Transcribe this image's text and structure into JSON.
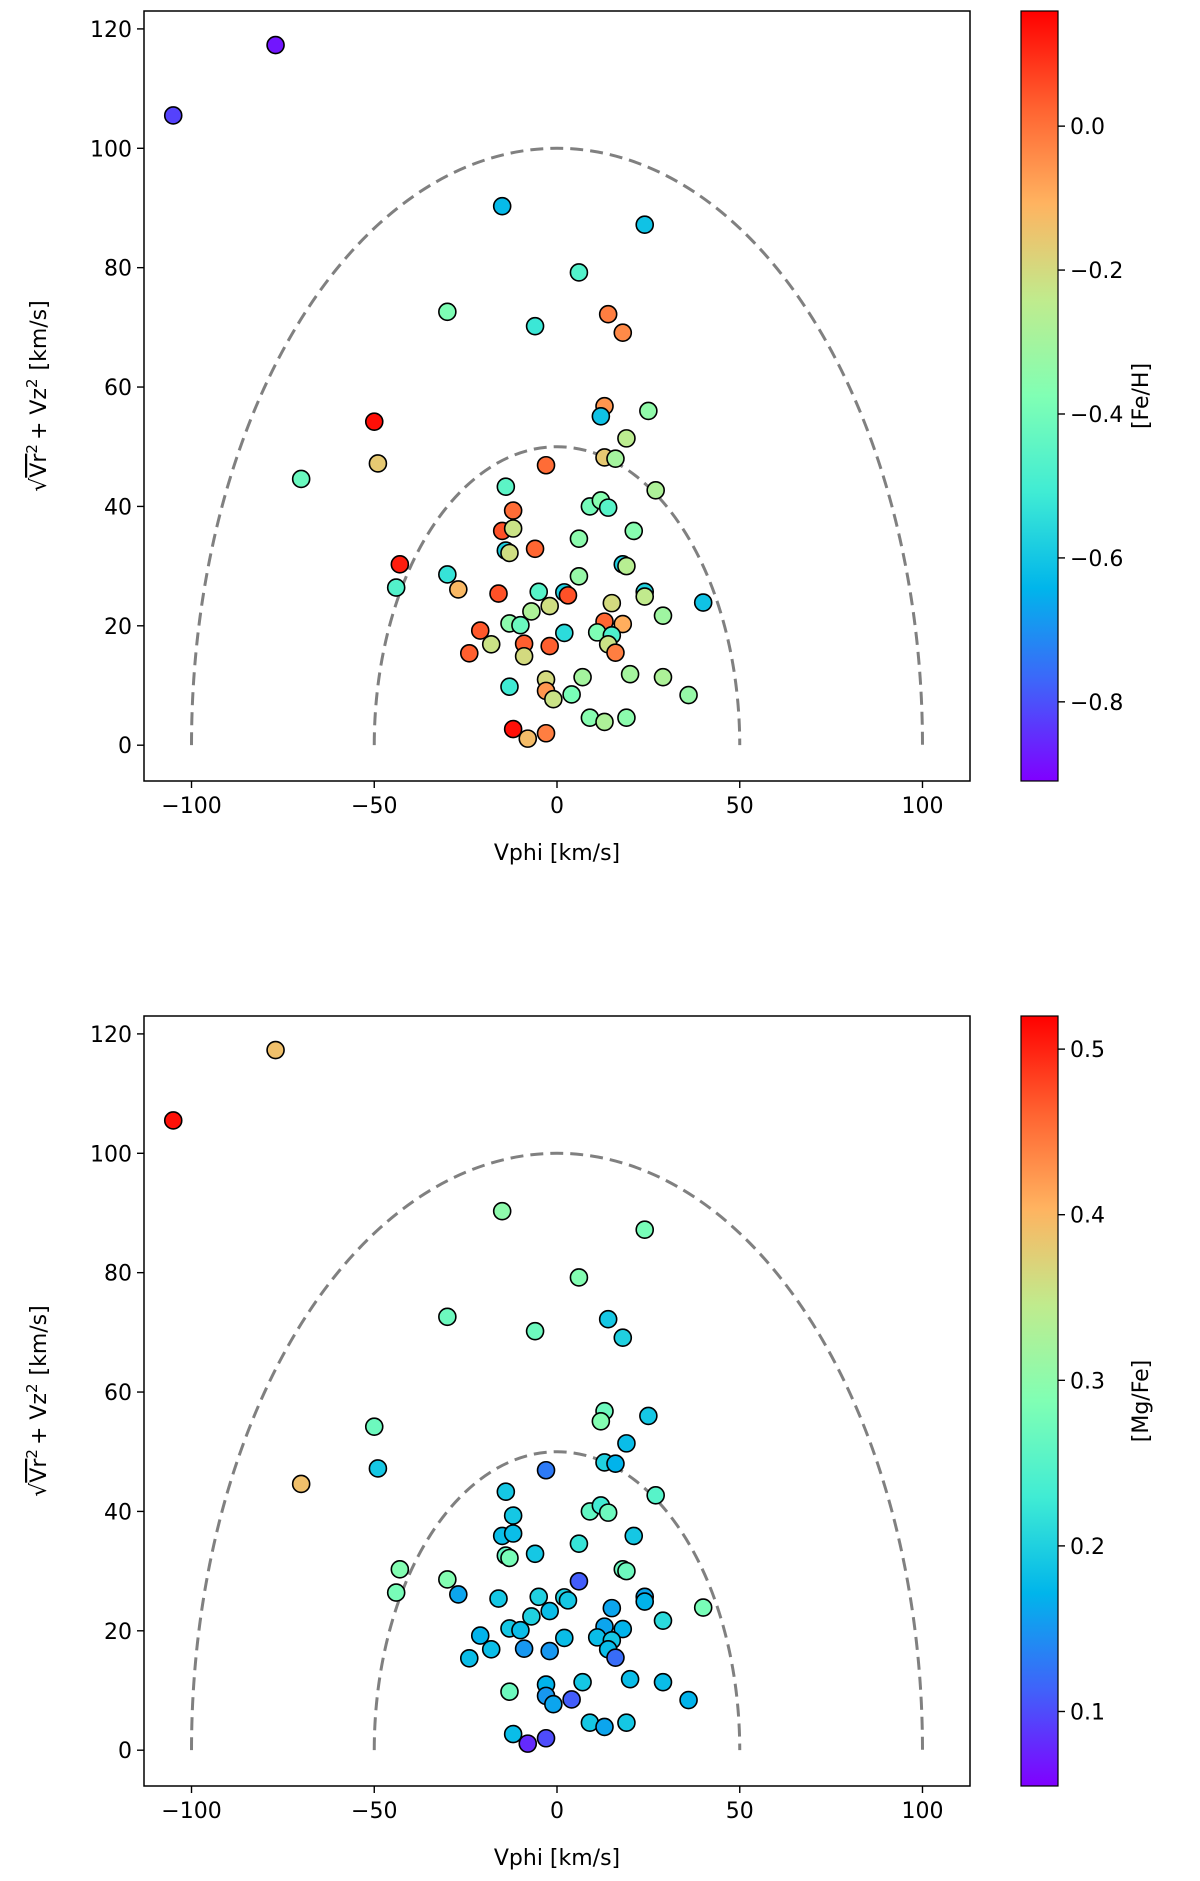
{
  "chart_data": [
    {
      "type": "scatter",
      "xlabel": "Vphi [km/s]",
      "ylabel_parts": [
        "Vr",
        "2",
        "+ Vz",
        "2",
        "[km/s]"
      ],
      "xlim": [
        -113,
        113
      ],
      "ylim": [
        -6,
        123
      ],
      "xticks": [
        -100,
        -50,
        0,
        50,
        100
      ],
      "xtick_labels": [
        "−100",
        "−50",
        "0",
        "50",
        "100"
      ],
      "yticks": [
        0,
        20,
        40,
        60,
        80,
        100,
        120
      ],
      "ytick_labels": [
        "0",
        "20",
        "40",
        "60",
        "80",
        "100",
        "120"
      ],
      "colorbar": {
        "label": "[Fe/H]",
        "range": [
          -0.91,
          0.16
        ],
        "ticks": [
          0.0,
          -0.2,
          -0.4,
          -0.6,
          -0.8
        ],
        "tick_labels": [
          "0.0",
          "−0.2",
          "−0.4",
          "−0.6",
          "−0.8"
        ]
      },
      "dashed_semicircles": [
        {
          "radius": 50,
          "color": "#808080"
        },
        {
          "radius": 100,
          "color": "#808080"
        }
      ],
      "points": [
        {
          "x": -105,
          "y": 105.5,
          "c": -0.82
        },
        {
          "x": -77,
          "y": 117.3,
          "c": -0.88
        },
        {
          "x": -15,
          "y": 90.3,
          "c": -0.63
        },
        {
          "x": 24,
          "y": 87.2,
          "c": -0.61
        },
        {
          "x": 6,
          "y": 79.2,
          "c": -0.47
        },
        {
          "x": -30,
          "y": 72.6,
          "c": -0.38
        },
        {
          "x": -6,
          "y": 70.2,
          "c": -0.52
        },
        {
          "x": 14,
          "y": 72.2,
          "c": -0.02
        },
        {
          "x": 18,
          "y": 69.1,
          "c": -0.04
        },
        {
          "x": -50,
          "y": 54.2,
          "c": 0.14
        },
        {
          "x": -49,
          "y": 47.2,
          "c": -0.16
        },
        {
          "x": -70,
          "y": 44.6,
          "c": -0.42
        },
        {
          "x": 13,
          "y": 56.8,
          "c": -0.06
        },
        {
          "x": 12,
          "y": 55.1,
          "c": -0.61
        },
        {
          "x": 25,
          "y": 56.0,
          "c": -0.34
        },
        {
          "x": 19,
          "y": 51.4,
          "c": -0.25
        },
        {
          "x": 13,
          "y": 48.2,
          "c": -0.16
        },
        {
          "x": 16,
          "y": 48.0,
          "c": -0.3
        },
        {
          "x": -3,
          "y": 46.9,
          "c": 0.01
        },
        {
          "x": -14,
          "y": 43.3,
          "c": -0.45
        },
        {
          "x": 27,
          "y": 42.7,
          "c": -0.28
        },
        {
          "x": 9,
          "y": 40.0,
          "c": -0.4
        },
        {
          "x": 12,
          "y": 41.0,
          "c": -0.36
        },
        {
          "x": 14,
          "y": 39.8,
          "c": -0.46
        },
        {
          "x": -12,
          "y": 39.3,
          "c": 0.01
        },
        {
          "x": -15,
          "y": 35.9,
          "c": 0.05
        },
        {
          "x": -12,
          "y": 36.3,
          "c": -0.22
        },
        {
          "x": 21,
          "y": 35.9,
          "c": -0.36
        },
        {
          "x": 6,
          "y": 34.6,
          "c": -0.35
        },
        {
          "x": -14,
          "y": 32.6,
          "c": -0.58
        },
        {
          "x": -6,
          "y": 32.9,
          "c": 0.02
        },
        {
          "x": -13,
          "y": 32.2,
          "c": -0.21
        },
        {
          "x": 18,
          "y": 30.3,
          "c": -0.58
        },
        {
          "x": 19,
          "y": 30.0,
          "c": -0.26
        },
        {
          "x": -43,
          "y": 30.3,
          "c": 0.12
        },
        {
          "x": -30,
          "y": 28.6,
          "c": -0.53
        },
        {
          "x": 6,
          "y": 28.3,
          "c": -0.33
        },
        {
          "x": -44,
          "y": 26.4,
          "c": -0.47
        },
        {
          "x": -27,
          "y": 26.1,
          "c": -0.12
        },
        {
          "x": -16,
          "y": 25.4,
          "c": 0.05
        },
        {
          "x": -5,
          "y": 25.7,
          "c": -0.46
        },
        {
          "x": 2,
          "y": 25.6,
          "c": -0.58
        },
        {
          "x": 3,
          "y": 25.1,
          "c": 0.05
        },
        {
          "x": 24,
          "y": 25.7,
          "c": -0.57
        },
        {
          "x": 24,
          "y": 24.9,
          "c": -0.24
        },
        {
          "x": 15,
          "y": 23.8,
          "c": -0.2
        },
        {
          "x": -2,
          "y": 23.3,
          "c": -0.21
        },
        {
          "x": -7,
          "y": 22.4,
          "c": -0.28
        },
        {
          "x": 40,
          "y": 23.9,
          "c": -0.61
        },
        {
          "x": 29,
          "y": 21.7,
          "c": -0.31
        },
        {
          "x": -13,
          "y": 20.4,
          "c": -0.35
        },
        {
          "x": -10,
          "y": 20.1,
          "c": -0.42
        },
        {
          "x": 13,
          "y": 20.7,
          "c": 0.02
        },
        {
          "x": 18,
          "y": 20.3,
          "c": -0.1
        },
        {
          "x": 11,
          "y": 18.9,
          "c": -0.38
        },
        {
          "x": 2,
          "y": 18.8,
          "c": -0.55
        },
        {
          "x": 15,
          "y": 18.4,
          "c": -0.48
        },
        {
          "x": -21,
          "y": 19.2,
          "c": 0.04
        },
        {
          "x": -18,
          "y": 16.9,
          "c": -0.22
        },
        {
          "x": -9,
          "y": 17.0,
          "c": 0.03
        },
        {
          "x": -2,
          "y": 16.6,
          "c": 0.03
        },
        {
          "x": 14,
          "y": 16.9,
          "c": -0.22
        },
        {
          "x": 16,
          "y": 15.5,
          "c": -0.02
        },
        {
          "x": -24,
          "y": 15.4,
          "c": 0.03
        },
        {
          "x": -9,
          "y": 14.9,
          "c": -0.2
        },
        {
          "x": -13,
          "y": 9.8,
          "c": -0.51
        },
        {
          "x": -3,
          "y": 11.0,
          "c": -0.2
        },
        {
          "x": 7,
          "y": 11.4,
          "c": -0.3
        },
        {
          "x": 20,
          "y": 11.9,
          "c": -0.3
        },
        {
          "x": 29,
          "y": 11.4,
          "c": -0.28
        },
        {
          "x": -3,
          "y": 9.1,
          "c": -0.06
        },
        {
          "x": -1,
          "y": 7.7,
          "c": -0.22
        },
        {
          "x": 4,
          "y": 8.5,
          "c": -0.39
        },
        {
          "x": 36,
          "y": 8.4,
          "c": -0.33
        },
        {
          "x": 9,
          "y": 4.6,
          "c": -0.36
        },
        {
          "x": 13,
          "y": 3.9,
          "c": -0.28
        },
        {
          "x": 19,
          "y": 4.6,
          "c": -0.35
        },
        {
          "x": -12,
          "y": 2.7,
          "c": 0.14
        },
        {
          "x": -3,
          "y": 2.0,
          "c": -0.02
        },
        {
          "x": -8,
          "y": 1.1,
          "c": -0.13
        }
      ]
    },
    {
      "type": "scatter",
      "xlabel": "Vphi [km/s]",
      "ylabel_parts": [
        "Vr",
        "2",
        "+ Vz",
        "2",
        "[km/s]"
      ],
      "xlim": [
        -113,
        113
      ],
      "ylim": [
        -6,
        123
      ],
      "xticks": [
        -100,
        -50,
        0,
        50,
        100
      ],
      "xtick_labels": [
        "−100",
        "−50",
        "0",
        "50",
        "100"
      ],
      "yticks": [
        0,
        20,
        40,
        60,
        80,
        100,
        120
      ],
      "ytick_labels": [
        "0",
        "20",
        "40",
        "60",
        "80",
        "100",
        "120"
      ],
      "colorbar": {
        "label": "[Mg/Fe]",
        "range": [
          0.055,
          0.52
        ],
        "ticks": [
          0.5,
          0.4,
          0.3,
          0.2,
          0.1
        ],
        "tick_labels": [
          "0.5",
          "0.4",
          "0.3",
          "0.2",
          "0.1"
        ]
      },
      "dashed_semicircles": [
        {
          "radius": 50,
          "color": "#808080"
        },
        {
          "radius": 100,
          "color": "#808080"
        }
      ],
      "points": [
        {
          "x": -105,
          "y": 105.5,
          "c": 0.51
        },
        {
          "x": -77,
          "y": 117.3,
          "c": 0.39
        },
        {
          "x": -70,
          "y": 44.6,
          "c": 0.39
        },
        {
          "x": -15,
          "y": 90.3,
          "c": 0.3
        },
        {
          "x": 24,
          "y": 87.2,
          "c": 0.28
        },
        {
          "x": 6,
          "y": 79.2,
          "c": 0.29
        },
        {
          "x": -30,
          "y": 72.6,
          "c": 0.27
        },
        {
          "x": -6,
          "y": 70.2,
          "c": 0.27
        },
        {
          "x": 14,
          "y": 72.2,
          "c": 0.19
        },
        {
          "x": 18,
          "y": 69.1,
          "c": 0.2
        },
        {
          "x": -50,
          "y": 54.2,
          "c": 0.27
        },
        {
          "x": -49,
          "y": 47.2,
          "c": 0.19
        },
        {
          "x": 13,
          "y": 56.8,
          "c": 0.27
        },
        {
          "x": 12,
          "y": 55.1,
          "c": 0.29
        },
        {
          "x": 25,
          "y": 56.0,
          "c": 0.19
        },
        {
          "x": 19,
          "y": 51.4,
          "c": 0.18
        },
        {
          "x": 13,
          "y": 48.2,
          "c": 0.2
        },
        {
          "x": 16,
          "y": 48.0,
          "c": 0.17
        },
        {
          "x": -3,
          "y": 46.9,
          "c": 0.13
        },
        {
          "x": -14,
          "y": 43.3,
          "c": 0.19
        },
        {
          "x": 27,
          "y": 42.7,
          "c": 0.25
        },
        {
          "x": 9,
          "y": 40.0,
          "c": 0.26
        },
        {
          "x": 12,
          "y": 41.0,
          "c": 0.23
        },
        {
          "x": 14,
          "y": 39.8,
          "c": 0.27
        },
        {
          "x": -12,
          "y": 39.3,
          "c": 0.19
        },
        {
          "x": -15,
          "y": 35.9,
          "c": 0.18
        },
        {
          "x": -12,
          "y": 36.3,
          "c": 0.18
        },
        {
          "x": 21,
          "y": 35.9,
          "c": 0.19
        },
        {
          "x": 6,
          "y": 34.6,
          "c": 0.22
        },
        {
          "x": -14,
          "y": 32.6,
          "c": 0.26
        },
        {
          "x": -6,
          "y": 32.9,
          "c": 0.19
        },
        {
          "x": -13,
          "y": 32.2,
          "c": 0.28
        },
        {
          "x": 18,
          "y": 30.3,
          "c": 0.27
        },
        {
          "x": 19,
          "y": 30.0,
          "c": 0.27
        },
        {
          "x": -43,
          "y": 30.3,
          "c": 0.29
        },
        {
          "x": -30,
          "y": 28.6,
          "c": 0.29
        },
        {
          "x": 6,
          "y": 28.3,
          "c": 0.11
        },
        {
          "x": -44,
          "y": 26.4,
          "c": 0.28
        },
        {
          "x": -27,
          "y": 26.1,
          "c": 0.16
        },
        {
          "x": -16,
          "y": 25.4,
          "c": 0.19
        },
        {
          "x": -5,
          "y": 25.7,
          "c": 0.2
        },
        {
          "x": 2,
          "y": 25.6,
          "c": 0.2
        },
        {
          "x": 3,
          "y": 25.1,
          "c": 0.19
        },
        {
          "x": 24,
          "y": 25.7,
          "c": 0.16
        },
        {
          "x": 24,
          "y": 24.9,
          "c": 0.17
        },
        {
          "x": 15,
          "y": 23.8,
          "c": 0.16
        },
        {
          "x": -2,
          "y": 23.3,
          "c": 0.18
        },
        {
          "x": -7,
          "y": 22.4,
          "c": 0.2
        },
        {
          "x": 40,
          "y": 23.9,
          "c": 0.28
        },
        {
          "x": 29,
          "y": 21.7,
          "c": 0.21
        },
        {
          "x": -13,
          "y": 20.4,
          "c": 0.19
        },
        {
          "x": -10,
          "y": 20.1,
          "c": 0.18
        },
        {
          "x": 13,
          "y": 20.7,
          "c": 0.16
        },
        {
          "x": 18,
          "y": 20.3,
          "c": 0.17
        },
        {
          "x": 11,
          "y": 18.9,
          "c": 0.18
        },
        {
          "x": 2,
          "y": 18.8,
          "c": 0.18
        },
        {
          "x": 15,
          "y": 18.4,
          "c": 0.19
        },
        {
          "x": -21,
          "y": 19.2,
          "c": 0.17
        },
        {
          "x": -18,
          "y": 16.9,
          "c": 0.18
        },
        {
          "x": -9,
          "y": 17.0,
          "c": 0.15
        },
        {
          "x": -2,
          "y": 16.6,
          "c": 0.15
        },
        {
          "x": 14,
          "y": 16.9,
          "c": 0.18
        },
        {
          "x": 16,
          "y": 15.5,
          "c": 0.12
        },
        {
          "x": -24,
          "y": 15.4,
          "c": 0.18
        },
        {
          "x": -13,
          "y": 9.8,
          "c": 0.27
        },
        {
          "x": -3,
          "y": 11.0,
          "c": 0.17
        },
        {
          "x": 7,
          "y": 11.4,
          "c": 0.19
        },
        {
          "x": 20,
          "y": 11.9,
          "c": 0.18
        },
        {
          "x": 29,
          "y": 11.4,
          "c": 0.18
        },
        {
          "x": -3,
          "y": 9.1,
          "c": 0.15
        },
        {
          "x": -1,
          "y": 7.7,
          "c": 0.16
        },
        {
          "x": 4,
          "y": 8.5,
          "c": 0.11
        },
        {
          "x": 36,
          "y": 8.4,
          "c": 0.17
        },
        {
          "x": 9,
          "y": 4.6,
          "c": 0.19
        },
        {
          "x": 13,
          "y": 3.9,
          "c": 0.16
        },
        {
          "x": 19,
          "y": 4.6,
          "c": 0.19
        },
        {
          "x": -12,
          "y": 2.7,
          "c": 0.18
        },
        {
          "x": -3,
          "y": 2.0,
          "c": 0.1
        },
        {
          "x": -8,
          "y": 1.1,
          "c": 0.08
        }
      ]
    }
  ]
}
